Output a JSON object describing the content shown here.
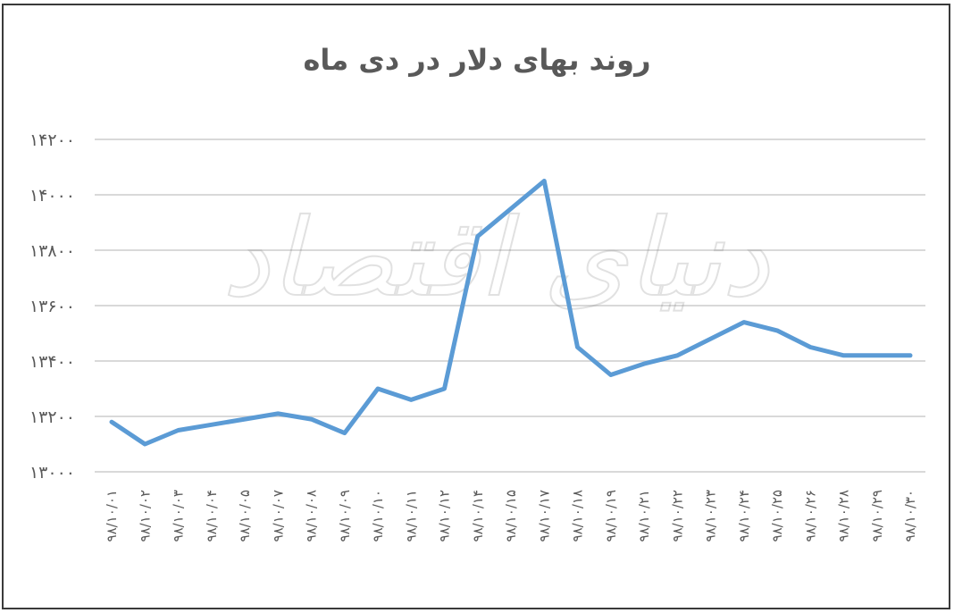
{
  "chart_data": {
    "type": "line",
    "title": "روند بهای دلار در دی ماه",
    "xlabel": "",
    "ylabel": "",
    "ylim": [
      13000,
      14200
    ],
    "yticks": [
      13000,
      13200,
      13400,
      13600,
      13800,
      14000,
      14200
    ],
    "ytick_labels": [
      "۱۳۰۰۰",
      "۱۳۲۰۰",
      "۱۳۴۰۰",
      "۱۳۶۰۰",
      "۱۳۸۰۰",
      "۱۴۰۰۰",
      "۱۴۲۰۰"
    ],
    "grid": true,
    "legend": "none",
    "categories": [
      "۹۸/۱۰/۰۱",
      "۹۸/۱۰/۰۲",
      "۹۸/۱۰/۰۳",
      "۹۸/۱۰/۰۴",
      "۹۸/۱۰/۰۵",
      "۹۸/۱۰/۰۷",
      "۹۸/۱۰/۰۸",
      "۹۸/۱۰/۰۹",
      "۹۸/۱۰/۱۰",
      "۹۸/۱۰/۱۱",
      "۹۸/۱۰/۱۲",
      "۹۸/۱۰/۱۴",
      "۹۸/۱۰/۱۵",
      "۹۸/۱۰/۱۷",
      "۹۸/۱۰/۱۸",
      "۹۸/۱۰/۱۹",
      "۹۸/۱۰/۲۱",
      "۹۸/۱۰/۲۲",
      "۹۸/۱۰/۲۳",
      "۹۸/۱۰/۲۴",
      "۹۸/۱۰/۲۵",
      "۹۸/۱۰/۲۶",
      "۹۸/۱۰/۲۸",
      "۹۸/۱۰/۲۹",
      "۹۸/۱۰/۳۰"
    ],
    "series": [
      {
        "values": [
          13180,
          13100,
          13150,
          13170,
          13190,
          13210,
          13190,
          13140,
          13300,
          13260,
          13300,
          13850,
          13950,
          14050,
          13450,
          13350,
          13390,
          13420,
          13480,
          13540,
          13510,
          13450,
          13420,
          13420,
          13420
        ],
        "color": "#5b9bd5"
      }
    ]
  },
  "watermark": {
    "text": "دنیای اقتصاد"
  }
}
